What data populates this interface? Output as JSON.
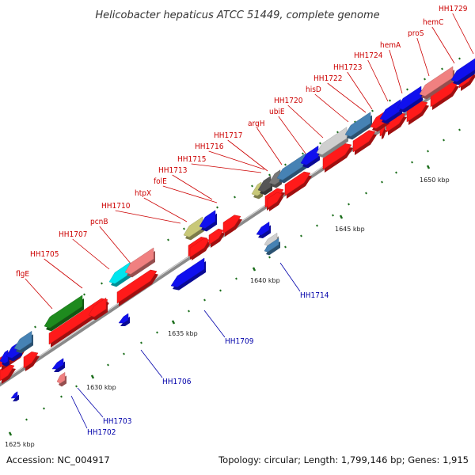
{
  "title": "Helicobacter hepaticus ATCC 51449, complete genome",
  "footer": {
    "accession": "Accession: NC_004917",
    "summary": "Topology: circular; Length: 1,799,146 bp; Genes: 1,915"
  },
  "colors": {
    "forward_gene": "#ff0000",
    "reverse_gene": "#0000ff",
    "label_top": "#cc0000",
    "label_bottom": "#0000aa",
    "backbone": "#8a8a8a",
    "tick": "#1a6d1a"
  },
  "scale_labels": [
    "1625 kbp",
    "1630 kbp",
    "1635 kbp",
    "1640 kbp",
    "1645 kbp",
    "1650 kbp"
  ],
  "top_labels": [
    "flgE",
    "HH1705",
    "HH1707",
    "pcnB",
    "HH1710",
    "htpX",
    "folE",
    "HH1713",
    "HH1715",
    "HH1716",
    "HH1717",
    "argH",
    "ubiE",
    "HH1720",
    "hisD",
    "HH1722",
    "HH1723",
    "HH1724",
    "hemA",
    "proS",
    "hemC",
    "HH1729"
  ],
  "bottom_labels": [
    "HH1702",
    "HH1703",
    "HH1706",
    "HH1709",
    "HH1714"
  ]
}
